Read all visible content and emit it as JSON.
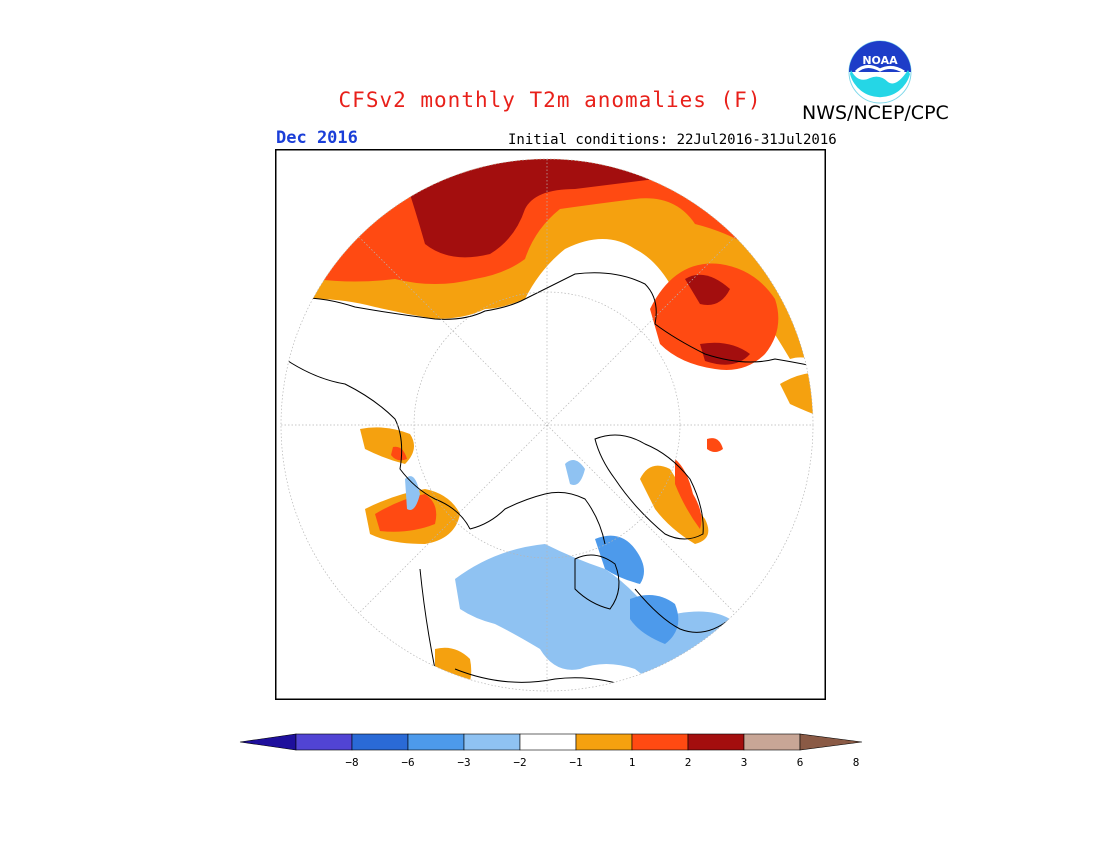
{
  "header": {
    "title": "CFSv2 monthly T2m anomalies (F)",
    "org": "NWS/NCEP/CPC",
    "month": "Dec 2016",
    "initial_conditions": "Initial conditions: 22Jul2016-31Jul2016",
    "logo_text": "NOAA"
  },
  "colors": {
    "title": "#e8201a",
    "month": "#1a3ed8",
    "frame": "#000000",
    "plus_1_2": "#f5a10f",
    "plus_2_3": "#ff4a12",
    "plus_3_6": "#a30e0e",
    "plus_6_8": "#c8a696",
    "plus_gt_8": "#8a5a45",
    "minus_1_2": "#8fc2f2",
    "minus_2_3": "#4d9aeb",
    "minus_3_6": "#2a6ad6",
    "minus_6_8": "#5144d4",
    "minus_lt_8": "#1e0f9c",
    "neutral": "#ffffff"
  },
  "legend": {
    "colors": [
      "#1e0f9c",
      "#5144d4",
      "#2a6ad6",
      "#4d9aeb",
      "#8fc2f2",
      "#ffffff",
      "#f5a10f",
      "#ff4a12",
      "#a30e0e",
      "#c8a696",
      "#8a5a45"
    ],
    "ticks": [
      "−8",
      "−6",
      "−3",
      "−2",
      "−1",
      "1",
      "2",
      "3",
      "6",
      "8"
    ]
  }
}
